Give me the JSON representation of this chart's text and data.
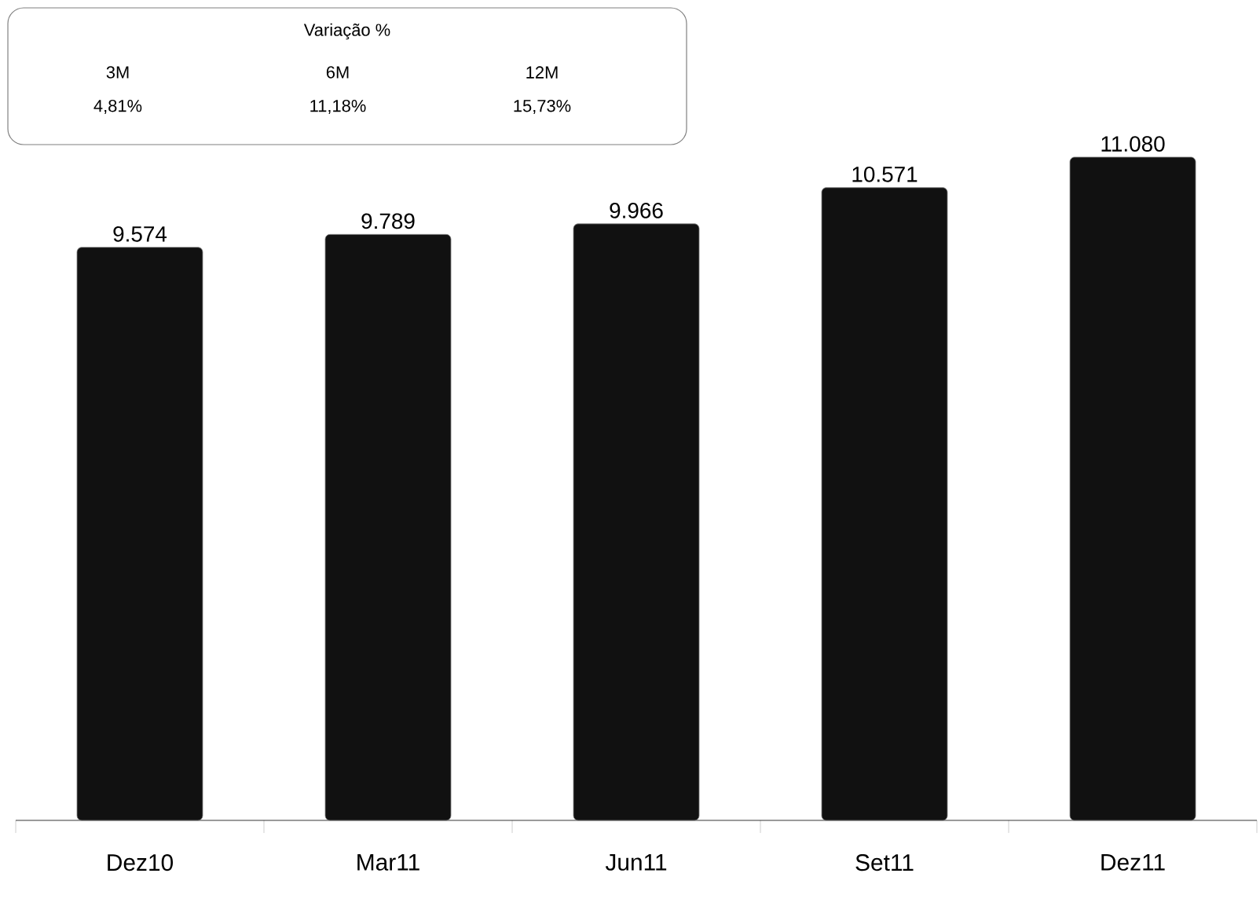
{
  "chart_data": {
    "type": "bar",
    "categories": [
      "Dez10",
      "Mar11",
      "Jun11",
      "Set11",
      "Dez11"
    ],
    "values": [
      9574,
      9789,
      9966,
      10571,
      11080
    ],
    "value_labels": [
      "9.574",
      "9.789",
      "9.966",
      "10.571",
      "11.080"
    ],
    "color": "#111111",
    "tick_labels": "x",
    "annotations": [
      "Variação %",
      "3M",
      "6M",
      "12M",
      "4,81%",
      "11,18%",
      "15,73%"
    ]
  }
}
